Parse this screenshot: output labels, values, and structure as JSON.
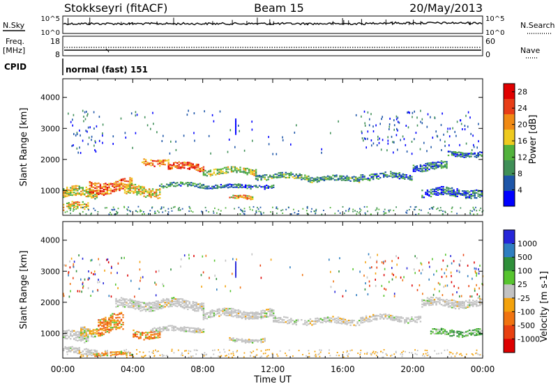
{
  "header": {
    "station": "Stokkseyri (fitACF)",
    "beam": "Beam 15",
    "date": "20/May/2013"
  },
  "nsky_panel": {
    "left_label": "N.Sky",
    "right_label": "N.Search",
    "left_ticks": [
      "10^5",
      "10^0"
    ],
    "right_ticks": [
      "10^5",
      "10^0"
    ]
  },
  "freq_panel": {
    "left_label_line1": "Freq.",
    "left_label_line2": "[MHz]",
    "right_label": "Nave",
    "left_ticks": [
      "18",
      "8"
    ],
    "right_ticks": [
      "60",
      "0"
    ]
  },
  "cpid_panel": {
    "label": "CPID",
    "mode_text": "normal (fast) 151"
  },
  "chart_data": [
    {
      "type": "heatmap",
      "name": "power",
      "ylabel": "Slant Range [km]",
      "xlabel": "",
      "y_ticks": [
        "1000",
        "2000",
        "3000",
        "4000"
      ],
      "ylim": [
        200,
        4600
      ],
      "colorbar": {
        "label": "Power [dB]",
        "tick_labels": [
          "4",
          "8",
          "12",
          "16",
          "20",
          "24",
          "28"
        ],
        "range": [
          0,
          30
        ],
        "colors": [
          "#0000ff",
          "#1d55a8",
          "#3f8f57",
          "#52b23c",
          "#eeca1f",
          "#f08a14",
          "#e83d17",
          "#e00000"
        ]
      },
      "bands": [
        {
          "start_h": 0.0,
          "end_h": 2.0,
          "center_km": 950,
          "width_km": 300,
          "level": 16
        },
        {
          "start_h": 0.0,
          "end_h": 1.5,
          "center_km": 500,
          "width_km": 240,
          "level": 18
        },
        {
          "start_h": 1.5,
          "end_h": 4.0,
          "center_km": 1150,
          "width_km": 380,
          "level": 22
        },
        {
          "start_h": 3.5,
          "end_h": 5.5,
          "center_km": 1000,
          "width_km": 320,
          "level": 18
        },
        {
          "start_h": 4.5,
          "end_h": 6.0,
          "center_km": 1950,
          "width_km": 200,
          "level": 22
        },
        {
          "start_h": 6.0,
          "end_h": 8.0,
          "center_km": 1780,
          "width_km": 220,
          "level": 24
        },
        {
          "start_h": 5.5,
          "end_h": 8.0,
          "center_km": 1200,
          "width_km": 140,
          "level": 9
        },
        {
          "start_h": 8.0,
          "end_h": 11.0,
          "center_km": 1640,
          "width_km": 200,
          "level": 14
        },
        {
          "start_h": 8.0,
          "end_h": 12.0,
          "center_km": 1150,
          "width_km": 120,
          "level": 6
        },
        {
          "start_h": 9.5,
          "end_h": 10.8,
          "center_km": 800,
          "width_km": 120,
          "level": 20
        },
        {
          "start_h": 11.0,
          "end_h": 14.0,
          "center_km": 1480,
          "width_km": 180,
          "level": 10
        },
        {
          "start_h": 14.0,
          "end_h": 17.0,
          "center_km": 1400,
          "width_km": 160,
          "level": 10
        },
        {
          "start_h": 17.0,
          "end_h": 20.0,
          "center_km": 1480,
          "width_km": 200,
          "level": 8
        },
        {
          "start_h": 20.0,
          "end_h": 22.0,
          "center_km": 1800,
          "width_km": 240,
          "level": 8
        },
        {
          "start_h": 22.0,
          "end_h": 24.0,
          "center_km": 2200,
          "width_km": 160,
          "level": 7
        },
        {
          "start_h": 20.5,
          "end_h": 24.0,
          "center_km": 950,
          "width_km": 260,
          "level": 6
        }
      ]
    },
    {
      "type": "heatmap",
      "name": "velocity",
      "ylabel": "Slant Range [km]",
      "xlabel": "Time UT",
      "y_ticks": [
        "1000",
        "2000",
        "3000",
        "4000"
      ],
      "ylim": [
        200,
        4600
      ],
      "x_ticks": [
        "00:00",
        "04:00",
        "08:00",
        "12:00",
        "16:00",
        "20:00",
        "00:00"
      ],
      "xlim_hours": [
        0,
        24
      ],
      "colorbar": {
        "label": "Velocity [m s-1]",
        "tick_labels": [
          "1000",
          "500",
          "100",
          "25",
          "-25",
          "-100",
          "-500",
          "-1000"
        ],
        "colors": [
          "#2626d9",
          "#2f7ec0",
          "#2f8f3a",
          "#57c42f",
          "#c2c2c2",
          "#f3a20c",
          "#f07310",
          "#e84010",
          "#dd0000"
        ]
      },
      "bands": [
        {
          "start_h": 0.0,
          "end_h": 1.5,
          "center_km": 900,
          "width_km": 300,
          "class": "ground"
        },
        {
          "start_h": 0.0,
          "end_h": 2.0,
          "center_km": 450,
          "width_km": 200,
          "class": "ground"
        },
        {
          "start_h": 1.0,
          "end_h": 2.0,
          "center_km": 1100,
          "width_km": 300,
          "class": "neg-low"
        },
        {
          "start_h": 2.0,
          "end_h": 3.5,
          "center_km": 1300,
          "width_km": 550,
          "class": "neg-mid"
        },
        {
          "start_h": 1.8,
          "end_h": 4.0,
          "center_km": 350,
          "width_km": 120,
          "class": "neg-mid"
        },
        {
          "start_h": 4.0,
          "end_h": 5.5,
          "center_km": 1000,
          "width_km": 260,
          "class": "neg-mid"
        },
        {
          "start_h": 3.0,
          "end_h": 8.0,
          "center_km": 1950,
          "width_km": 300,
          "class": "ground"
        },
        {
          "start_h": 8.0,
          "end_h": 12.0,
          "center_km": 1650,
          "width_km": 250,
          "class": "ground"
        },
        {
          "start_h": 12.0,
          "end_h": 17.0,
          "center_km": 1420,
          "width_km": 200,
          "class": "ground"
        },
        {
          "start_h": 17.0,
          "end_h": 20.5,
          "center_km": 1500,
          "width_km": 200,
          "class": "ground"
        },
        {
          "start_h": 20.5,
          "end_h": 24.0,
          "center_km": 2000,
          "width_km": 260,
          "class": "ground"
        },
        {
          "start_h": 5.0,
          "end_h": 8.0,
          "center_km": 1150,
          "width_km": 160,
          "class": "ground"
        },
        {
          "start_h": 9.5,
          "end_h": 11.5,
          "center_km": 800,
          "width_km": 120,
          "class": "ground"
        },
        {
          "start_h": 21.0,
          "end_h": 24.0,
          "center_km": 1050,
          "width_km": 200,
          "class": "pos-low"
        }
      ]
    }
  ],
  "colors": {
    "frame": "#000000",
    "background": "#ffffff"
  }
}
